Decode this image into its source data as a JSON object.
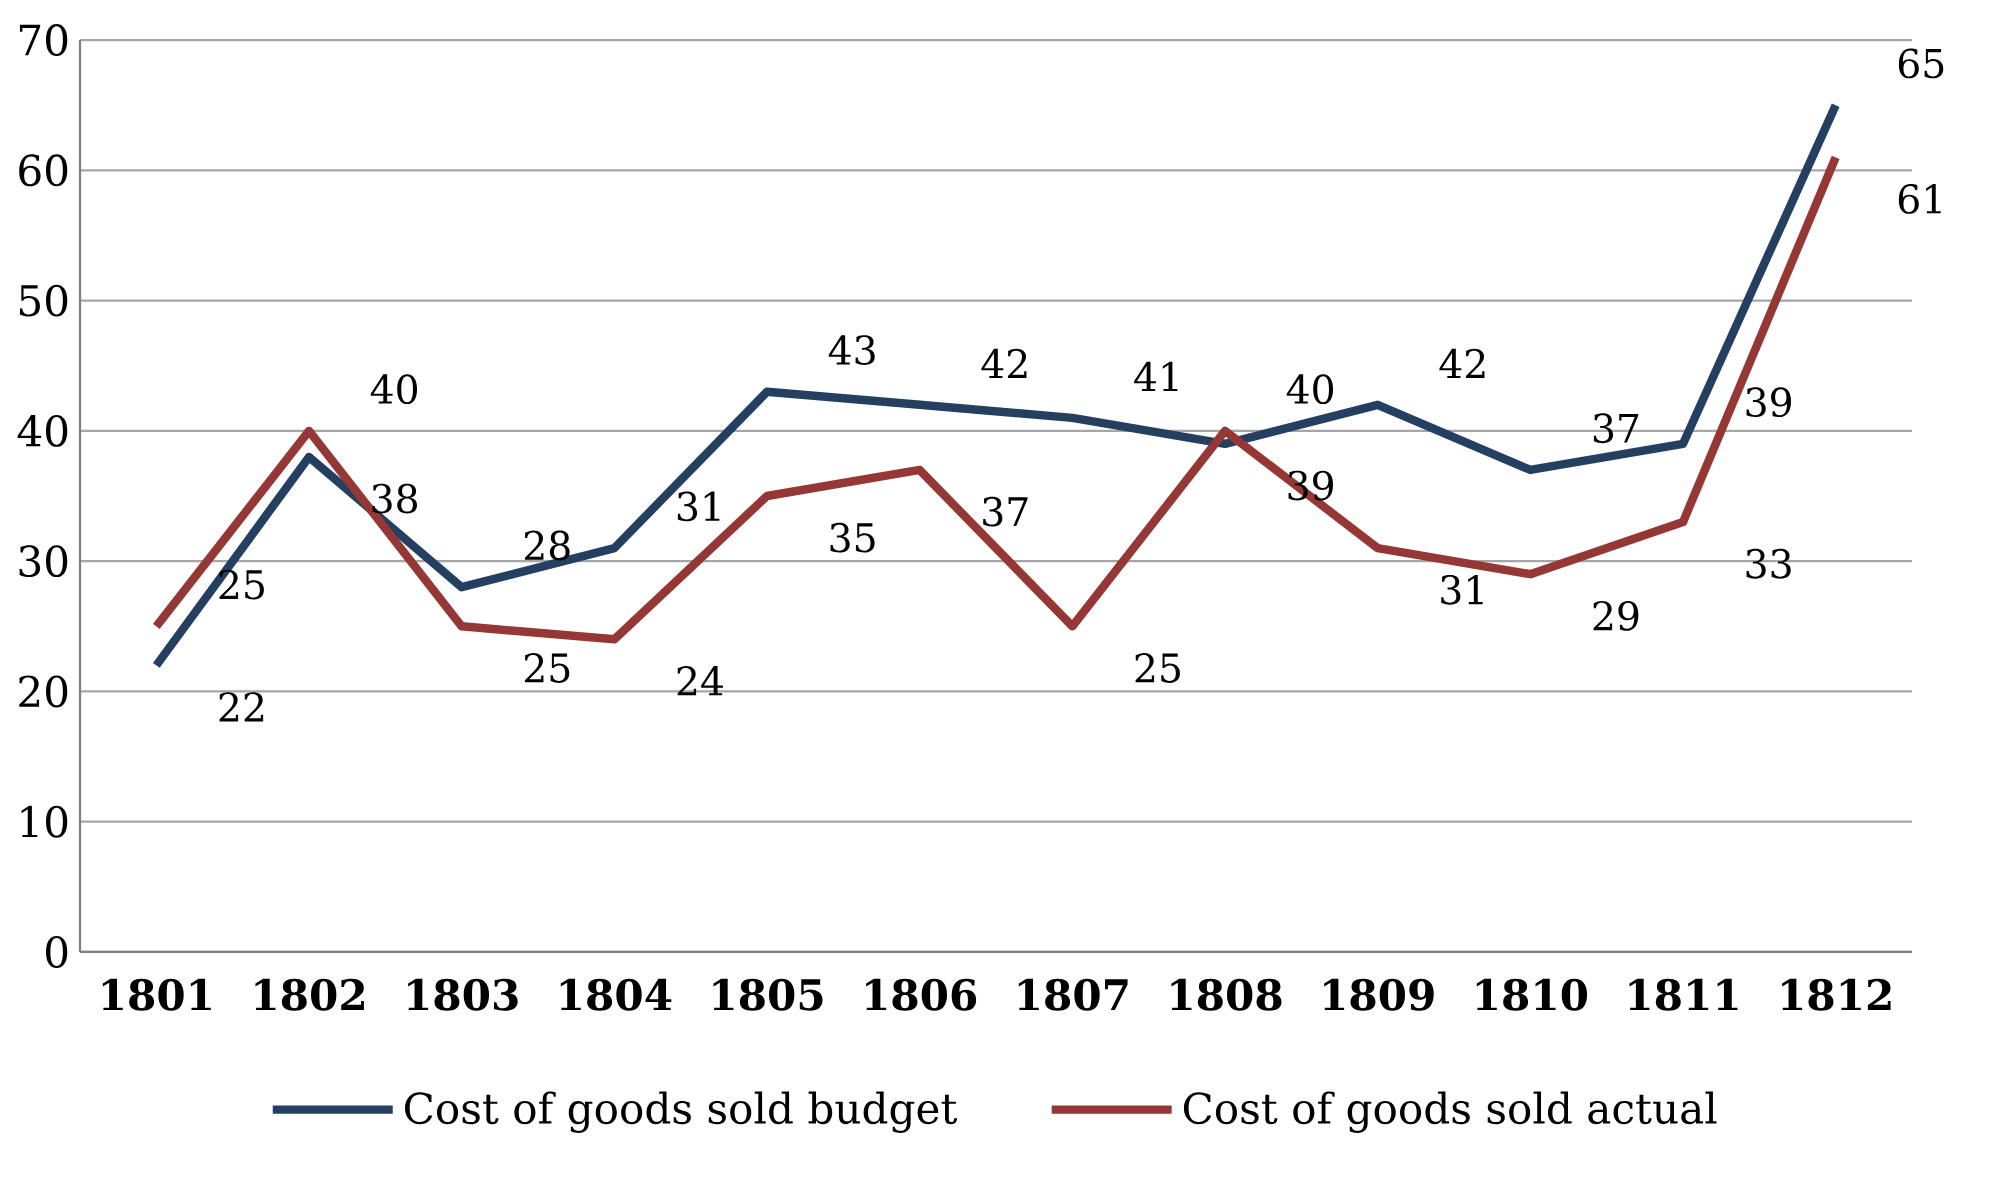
{
  "chart_data": {
    "type": "line",
    "categories": [
      "1801",
      "1802",
      "1803",
      "1804",
      "1805",
      "1806",
      "1807",
      "1808",
      "1809",
      "1810",
      "1811",
      "1812"
    ],
    "series": [
      {
        "name": "Cost of goods sold budget",
        "color": "#243f60",
        "values": [
          22,
          38,
          28,
          31,
          43,
          42,
          41,
          39,
          42,
          37,
          39,
          65
        ]
      },
      {
        "name": "Cost of goods sold actual",
        "color": "#953735",
        "values": [
          25,
          40,
          25,
          24,
          35,
          37,
          25,
          40,
          31,
          29,
          33,
          61
        ]
      }
    ],
    "ylim": [
      0,
      70
    ],
    "yticks": [
      0,
      10,
      20,
      30,
      40,
      50,
      60,
      70
    ],
    "grid": "y",
    "legend": "bottom",
    "data_labels": true,
    "marker": "none",
    "line_style": "solid"
  }
}
